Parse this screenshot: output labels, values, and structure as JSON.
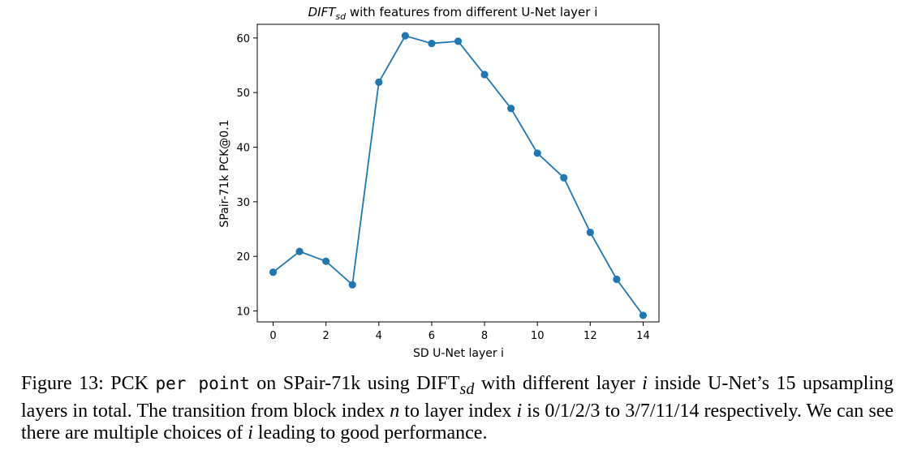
{
  "chart_data": {
    "type": "line",
    "title_main": "DIFT",
    "title_sub": "sd",
    "title_rest": " with features from different U-Net layer i",
    "xlabel": "SD U-Net layer i",
    "ylabel": "SPair-71k PCK@0.1",
    "xlim": [
      -0.6,
      14.6
    ],
    "ylim": [
      8,
      62.5
    ],
    "xticks": [
      0,
      2,
      4,
      6,
      8,
      10,
      12,
      14
    ],
    "yticks": [
      10,
      20,
      30,
      40,
      50,
      60
    ],
    "grid": false,
    "legend": "none",
    "x": [
      0,
      1,
      2,
      3,
      4,
      5,
      6,
      7,
      8,
      9,
      10,
      11,
      12,
      13,
      14
    ],
    "series": [
      {
        "values": [
          17.1,
          20.9,
          19.1,
          14.8,
          51.9,
          60.4,
          59.0,
          59.4,
          53.3,
          47.1,
          38.9,
          34.4,
          24.4,
          15.8,
          9.2
        ],
        "color": "#1f77b4"
      }
    ]
  },
  "caption": {
    "fig_label": "Figure 13:",
    "t1": " PCK ",
    "mono": "per point",
    "t2": " on SPair-71k using DIFT",
    "sub": "sd",
    "t3": " with different layer ",
    "i1": "i",
    "t4": " inside U-Net’s 15 upsampling layers in total. The transition from block index ",
    "n": "n",
    "t5": " to layer index ",
    "i2": "i",
    "t6": " is 0/1/2/3 to 3/7/11/14 respectively. We can see there are multiple choices of ",
    "i3": "i",
    "t7": " leading to good performance."
  }
}
